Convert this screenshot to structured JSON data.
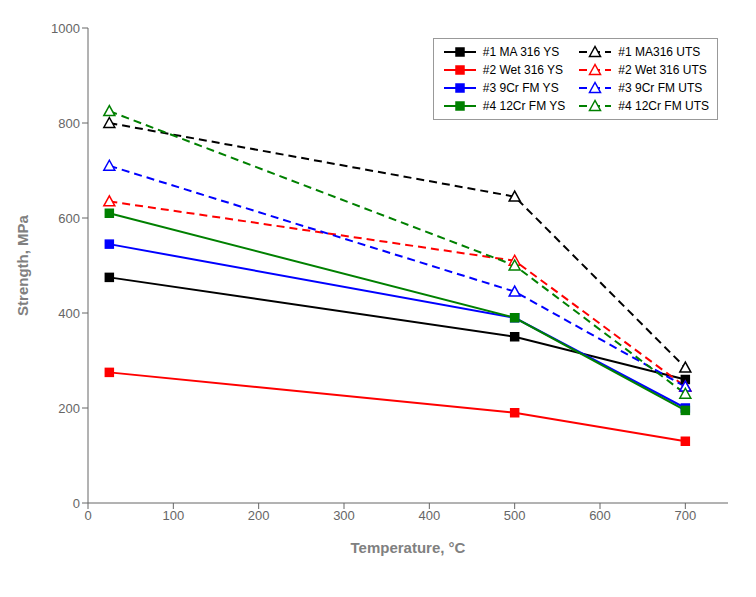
{
  "chart_data": {
    "type": "line",
    "xlabel": "Temperature, °C",
    "ylabel": "Strength, MPa",
    "x": [
      25,
      500,
      700
    ],
    "xlim": [
      0,
      750
    ],
    "ylim": [
      0,
      1000
    ],
    "xticks": [
      0,
      100,
      200,
      300,
      400,
      500,
      600,
      700
    ],
    "yticks": [
      0,
      200,
      400,
      600,
      800,
      1000
    ],
    "legend": "upper right",
    "series": [
      {
        "name": "#1 MA 316 YS",
        "color": "black",
        "values": [
          475,
          350,
          260
        ],
        "marker": "square",
        "line_style": "solid"
      },
      {
        "name": "#2 Wet 316 YS",
        "color": "red",
        "values": [
          275,
          190,
          130
        ],
        "marker": "square",
        "line_style": "solid"
      },
      {
        "name": "#3 9Cr FM YS",
        "color": "blue",
        "values": [
          545,
          390,
          200
        ],
        "marker": "square",
        "line_style": "solid"
      },
      {
        "name": "#4 12Cr FM YS",
        "color": "green",
        "values": [
          610,
          390,
          195
        ],
        "marker": "square",
        "line_style": "solid"
      },
      {
        "name": "#1 MA316 UTS",
        "color": "black",
        "values": [
          800,
          645,
          285
        ],
        "marker": "triangle-open",
        "line_style": "dashed"
      },
      {
        "name": "#2 Wet 316 UTS",
        "color": "red",
        "values": [
          635,
          510,
          245
        ],
        "marker": "triangle-open",
        "line_style": "dashed"
      },
      {
        "name": "#3 9Cr FM UTS",
        "color": "blue",
        "values": [
          710,
          445,
          245
        ],
        "marker": "triangle-open",
        "line_style": "dashed"
      },
      {
        "name": "#4 12Cr FM UTS",
        "color": "green",
        "values": [
          825,
          500,
          230
        ],
        "marker": "triangle-open",
        "line_style": "dashed"
      }
    ]
  }
}
